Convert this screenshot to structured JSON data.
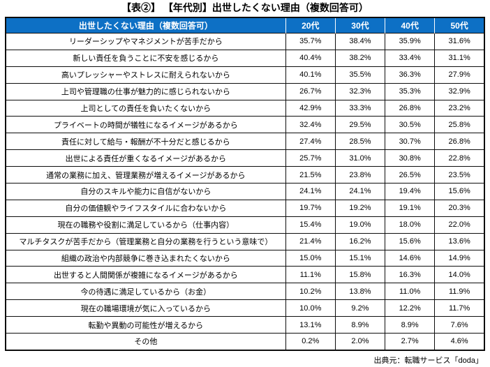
{
  "title": "【表②】 【年代別】出世したくない理由（複数回答可）",
  "source": "出典元：転職サービス「doda」",
  "colors": {
    "header_bg": "#0d70c5",
    "header_text": "#ffffff",
    "border": "#0d0d0d"
  },
  "chart_data": {
    "type": "table",
    "columns": [
      "出世したくない理由（複数回答可）",
      "20代",
      "30代",
      "40代",
      "50代"
    ],
    "rows": [
      [
        "リーダーシップやマネジメントが苦手だから",
        "35.7%",
        "38.4%",
        "35.9%",
        "31.6%"
      ],
      [
        "新しい責任を負うことに不安を感じるから",
        "40.4%",
        "38.2%",
        "33.4%",
        "31.1%"
      ],
      [
        "高いプレッシャーやストレスに耐えられないから",
        "40.1%",
        "35.5%",
        "36.3%",
        "27.9%"
      ],
      [
        "上司や管理職の仕事が魅力的に感じられないから",
        "26.7%",
        "32.3%",
        "35.3%",
        "32.9%"
      ],
      [
        "上司としての責任を負いたくないから",
        "42.9%",
        "33.3%",
        "26.8%",
        "23.2%"
      ],
      [
        "プライベートの時間が犠牲になるイメージがあるから",
        "32.4%",
        "29.5%",
        "30.5%",
        "25.8%"
      ],
      [
        "責任に対して給与・報酬が不十分だと感じるから",
        "27.4%",
        "28.5%",
        "30.7%",
        "26.8%"
      ],
      [
        "出世による責任が重くなるイメージがあるから",
        "25.7%",
        "31.0%",
        "30.8%",
        "22.8%"
      ],
      [
        "通常の業務に加え、管理業務が増えるイメージがあるから",
        "21.5%",
        "23.8%",
        "26.5%",
        "23.5%"
      ],
      [
        "自分のスキルや能力に自信がないから",
        "24.1%",
        "24.1%",
        "19.4%",
        "15.6%"
      ],
      [
        "自分の価値観やライフスタイルに合わないから",
        "19.7%",
        "19.2%",
        "19.1%",
        "20.3%"
      ],
      [
        "現在の職務や役割に満足しているから（仕事内容）",
        "15.4%",
        "19.0%",
        "18.0%",
        "22.0%"
      ],
      [
        "マルチタスクが苦手だから（管理業務と自分の業務を行うという意味で）",
        "21.4%",
        "16.2%",
        "15.6%",
        "13.6%"
      ],
      [
        "組織の政治や内部競争に巻き込まれたくないから",
        "15.0%",
        "15.1%",
        "14.6%",
        "14.9%"
      ],
      [
        "出世すると人間関係が複雑になるイメージがあるから",
        "11.1%",
        "15.8%",
        "16.3%",
        "14.0%"
      ],
      [
        "今の待遇に満足しているから（お金）",
        "10.2%",
        "13.8%",
        "11.0%",
        "11.9%"
      ],
      [
        "現在の職場環境が気に入っているから",
        "10.0%",
        "9.2%",
        "12.2%",
        "11.7%"
      ],
      [
        "転勤や異動の可能性が増えるから",
        "13.1%",
        "8.9%",
        "8.9%",
        "7.6%"
      ],
      [
        "その他",
        "0.2%",
        "2.0%",
        "2.7%",
        "4.6%"
      ]
    ]
  }
}
